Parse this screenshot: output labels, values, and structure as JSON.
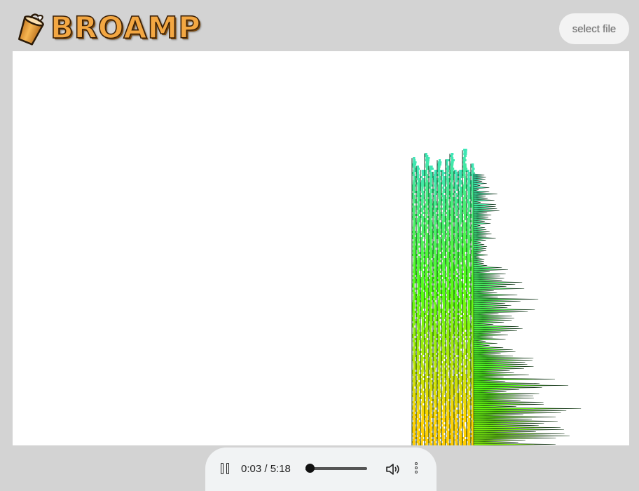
{
  "app": {
    "name": "BROAMP",
    "logo_icon": "paint-bucket-icon",
    "brand_color": "#f3a742"
  },
  "header": {
    "select_file_label": "select file"
  },
  "visualizer": {
    "background": "#ffffff",
    "color_low": "#ffd400",
    "color_mid": "#55ff10",
    "color_high": "#3ee6b8"
  },
  "player": {
    "time": "0:03 / 5:18",
    "progress": 0.0094,
    "icons": {
      "play_pause": "pause-icon",
      "volume": "volume-icon",
      "more": "more-options-icon"
    }
  }
}
